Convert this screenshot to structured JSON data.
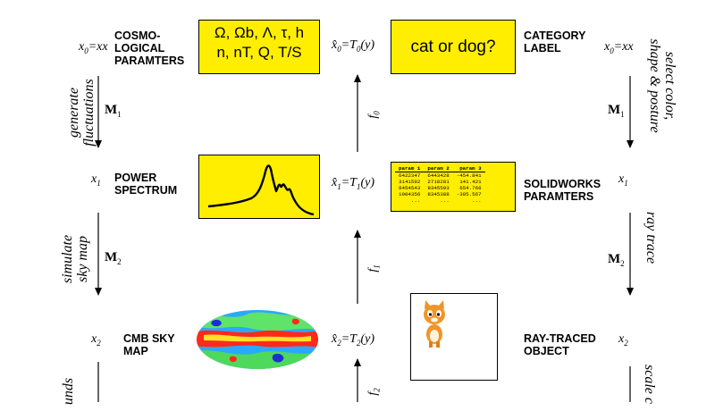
{
  "left_column": {
    "x0_label": "x",
    "x0_eq": "=x",
    "cosmo_label": "COSMO-\nLOGICAL\nPARAMTERS",
    "m1": "M",
    "m1_sub": "1",
    "generate_fluct": "generate\nfluctuations",
    "x1_label": "x",
    "power_label": "POWER\nSPECTRUM",
    "simulate_sky": "simulate\nsky map",
    "m2": "M",
    "m2_sub": "2",
    "x2_label": "x",
    "cmb_label": "CMB SKY\nMAP",
    "bottom_partial": "unds"
  },
  "center": {
    "params_box_text": "Ω, Ωb, Λ, τ, h\nn, nT, Q, T/S",
    "xhat0": "x̂",
    "t0": "=T",
    "y": "(y)",
    "xhat1": "x̂",
    "xhat2": "x̂",
    "f0": "f",
    "f1": "f",
    "f2": "f",
    "sub0": "0",
    "sub1": "1",
    "sub2": "2"
  },
  "right_column": {
    "catdog_text": "cat or dog?",
    "category_label": "CATEGORY\nLABEL",
    "x0_label": "x",
    "x0_eq": "=x",
    "select_color": "select color,\nshape & posture",
    "m1": "M",
    "m1_sub": "1",
    "table_headers": [
      "param 1",
      "param 2",
      "param 3"
    ],
    "table_rows": [
      [
        "6422347",
        "6443428",
        "-454.841"
      ],
      [
        "3141592",
        "2718281",
        "141.421"
      ],
      [
        "8454543",
        "9345593",
        "654.766"
      ],
      [
        "1004356",
        "8345388",
        "-305.567"
      ],
      [
        "...",
        "...",
        "..."
      ]
    ],
    "solidworks_label": "SOLIDWORKS\nPARAMTERS",
    "x1_label": "x",
    "ray_trace": "ray trace",
    "m2": "M",
    "m2_sub": "2",
    "raytraced_label": "RAY-TRACED\nOBJECT",
    "x2_label": "x",
    "scale_partial": "scale c"
  },
  "colors": {
    "box_fill": "#ffee00",
    "ink": "#000000"
  }
}
